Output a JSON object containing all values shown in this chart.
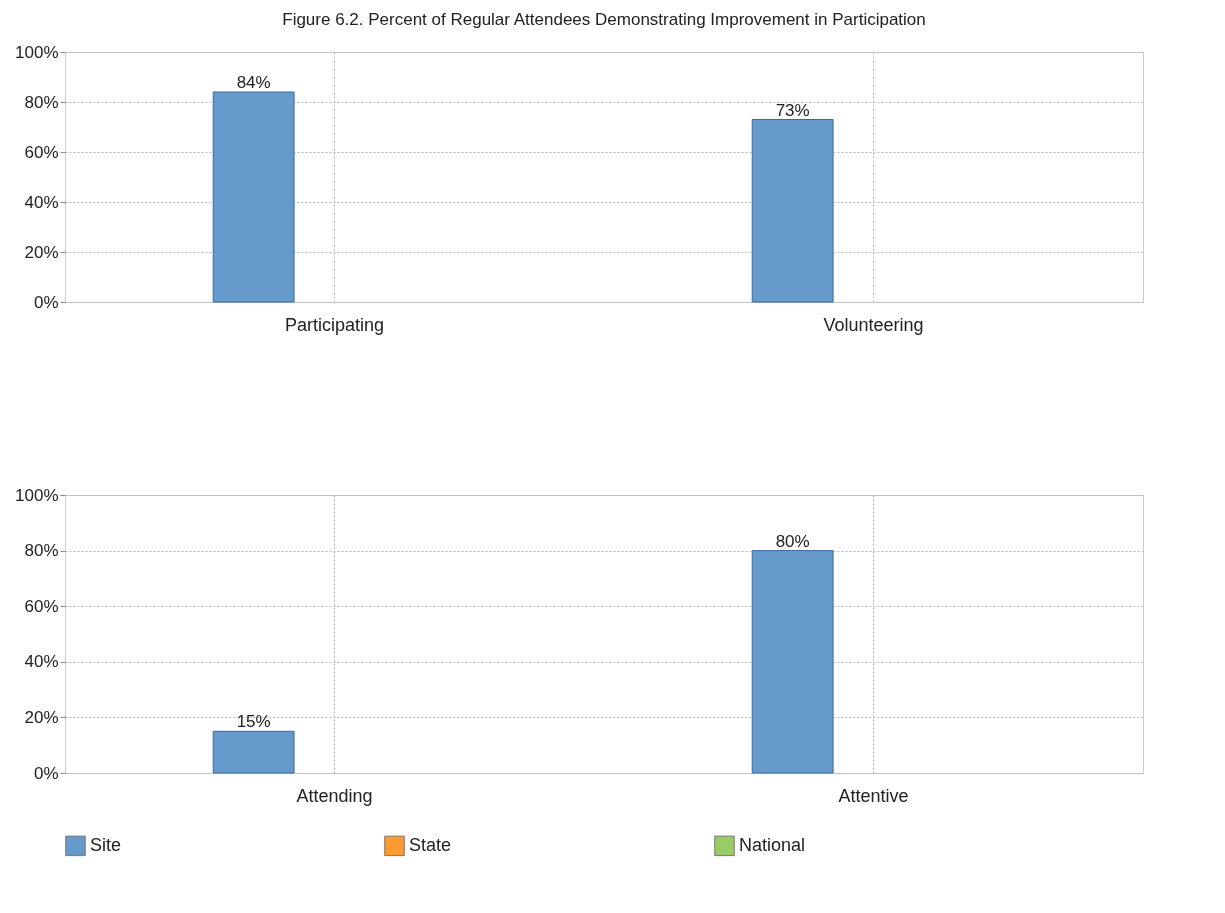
{
  "chart_data": [
    {
      "type": "bar",
      "title": "Figure 6.2. Percent of Regular Attendees Demonstrating Improvement in Participation",
      "categories": [
        "Participating",
        "Volunteering"
      ],
      "series": [
        {
          "color": "#6699cc",
          "values": [
            84,
            73
          ],
          "value_labels": [
            "84%",
            "73%"
          ]
        },
        {
          "color": "#ff9933",
          "values": [
            null,
            null
          ]
        },
        {
          "color": "#99cc66",
          "values": [
            null,
            null
          ]
        }
      ],
      "ylim": [
        0,
        100
      ],
      "yticks": [
        {
          "value": 0,
          "label": "0%"
        },
        {
          "value": 20,
          "label": "20%"
        },
        {
          "value": 40,
          "label": "40%"
        },
        {
          "value": 60,
          "label": "60%"
        },
        {
          "value": 80,
          "label": "80%"
        },
        {
          "value": 100,
          "label": "100%"
        }
      ],
      "grid": true,
      "legend": false
    },
    {
      "type": "bar",
      "categories": [
        "Attending",
        "Attentive"
      ],
      "series": [
        {
          "name": "Site",
          "color": "#6699cc",
          "values": [
            15,
            80
          ],
          "value_labels": [
            "15%",
            "80%"
          ]
        },
        {
          "name": "State",
          "color": "#ff9933",
          "values": [
            null,
            null
          ]
        },
        {
          "name": "National",
          "color": "#99cc66",
          "values": [
            null,
            null
          ]
        }
      ],
      "ylim": [
        0,
        100
      ],
      "yticks": [
        {
          "value": 0,
          "label": "0%"
        },
        {
          "value": 20,
          "label": "20%"
        },
        {
          "value": 40,
          "label": "40%"
        },
        {
          "value": 60,
          "label": "60%"
        },
        {
          "value": 80,
          "label": "80%"
        },
        {
          "value": 100,
          "label": "100%"
        }
      ],
      "grid": true,
      "legend": "bottom"
    }
  ]
}
